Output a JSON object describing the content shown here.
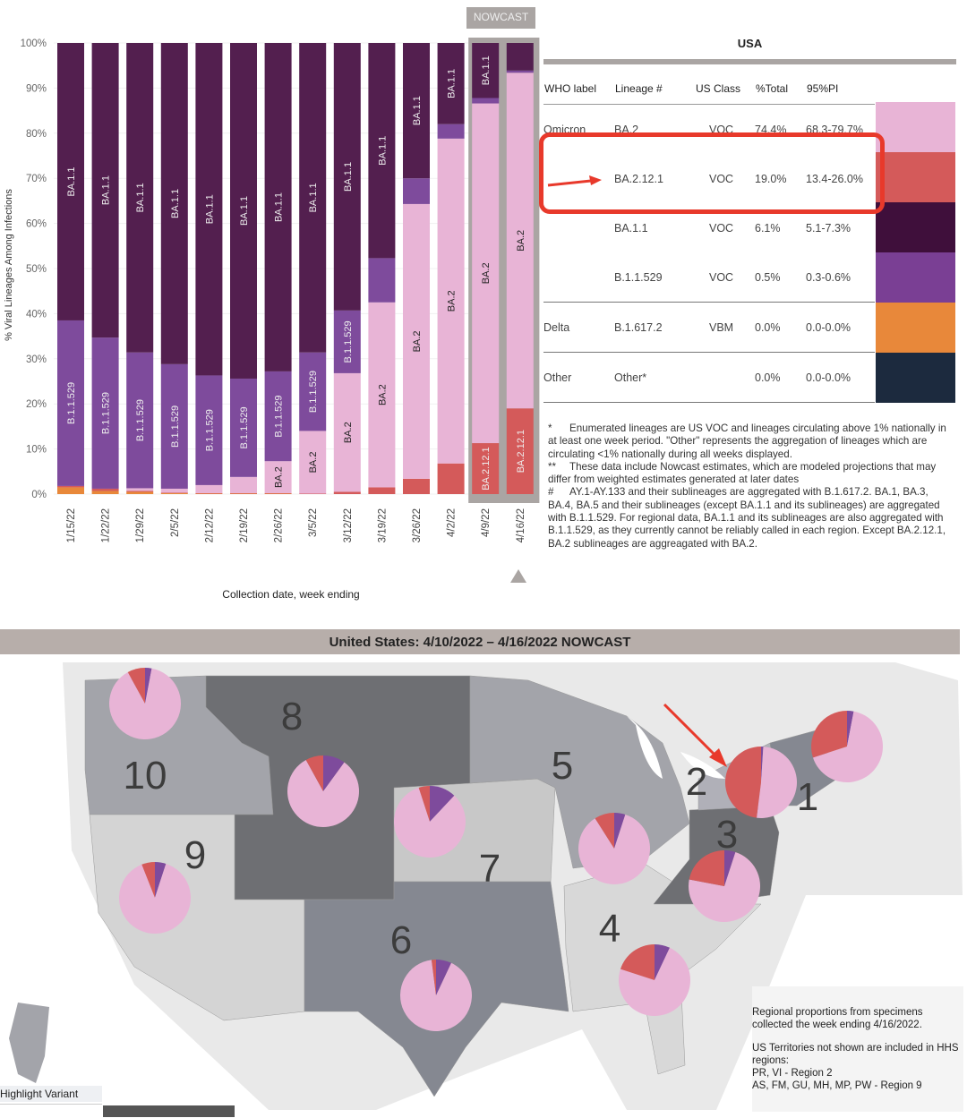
{
  "chart_data": {
    "type": "bar",
    "stacked": true,
    "title": "",
    "xlabel": "Collection date, week ending",
    "ylabel": "% Viral Lineages Among Infections",
    "ylim": [
      0,
      100
    ],
    "yticks": [
      "0%",
      "10%",
      "20%",
      "30%",
      "40%",
      "50%",
      "60%",
      "70%",
      "80%",
      "90%",
      "100%"
    ],
    "nowcast_label": "NOWCAST",
    "categories": [
      "1/15/22",
      "1/22/22",
      "1/29/22",
      "2/5/22",
      "2/12/22",
      "2/19/22",
      "2/26/22",
      "3/5/22",
      "3/12/22",
      "3/19/22",
      "3/26/22",
      "4/2/22",
      "4/9/22",
      "4/16/22"
    ],
    "series_order": [
      "B.1.617.2",
      "BA.2.12.1",
      "BA.2",
      "B.1.1.529",
      "BA.1.1"
    ],
    "series": [
      {
        "name": "B.1.617.2",
        "color": "#e8883a",
        "values": [
          1.5,
          0.7,
          0.5,
          0.2,
          0.1,
          0.1,
          0.1,
          0,
          0,
          0,
          0,
          0,
          0,
          0
        ]
      },
      {
        "name": "BA.2.12.1",
        "color": "#d45a5a",
        "values": [
          0.3,
          0.5,
          0.2,
          0.1,
          0.1,
          0.1,
          0.1,
          0.1,
          0.5,
          1.5,
          3.4,
          6.8,
          11.3,
          19.0
        ]
      },
      {
        "name": "BA.2",
        "color": "#e8b4d6",
        "values": [
          0,
          0,
          0.6,
          0.9,
          1.8,
          3.6,
          7.1,
          13.9,
          26.3,
          41.0,
          60.9,
          72.0,
          75.3,
          74.4
        ]
      },
      {
        "name": "B.1.1.529",
        "color": "#7e4b9c",
        "values": [
          36.7,
          33.5,
          30.1,
          27.6,
          24.3,
          21.8,
          19.9,
          17.4,
          13.9,
          9.8,
          5.7,
          3.2,
          1.2,
          0.5
        ]
      },
      {
        "name": "BA.1.1",
        "color": "#531f4f",
        "values": [
          61.5,
          65.3,
          68.6,
          71.2,
          73.7,
          74.4,
          72.8,
          68.6,
          59.3,
          47.7,
          30.0,
          18.0,
          12.2,
          6.1
        ]
      }
    ],
    "segment_labels": [
      [
        "BA.1.1",
        "B.1.1.529"
      ],
      [
        "BA.1.1",
        "B.1.1.529"
      ],
      [
        "BA.1.1",
        "B.1.1.529"
      ],
      [
        "BA.1.1",
        "B.1.1.529"
      ],
      [
        "BA.1.1",
        "B.1.1.529"
      ],
      [
        "BA.1.1",
        "B.1.1.529"
      ],
      [
        "BA.1.1",
        "B.1.1.529",
        "BA.2"
      ],
      [
        "BA.1.1",
        "B.1.1.529",
        "BA.2"
      ],
      [
        "BA.1.1",
        "B.1.1.529",
        "BA.2"
      ],
      [
        "BA.1.1",
        "BA.2"
      ],
      [
        "BA.1.1",
        "BA.2"
      ],
      [
        "BA.1.1",
        "BA.2"
      ],
      [
        "BA.1.1",
        "BA.2",
        "BA.2.12.1"
      ],
      [
        "BA.2",
        "BA.2.12.1"
      ]
    ],
    "nowcast_weeks": [
      "4/9/22",
      "4/16/22"
    ]
  },
  "table": {
    "title": "USA",
    "headers": [
      "WHO label",
      "Lineage #",
      "US Class",
      "%Total",
      "95%PI"
    ],
    "rows": [
      {
        "who": "Omicron",
        "lineage": "BA.2",
        "class": "VOC",
        "total": "74.4%",
        "pi": "68.3-79.7%",
        "color": "#e8b4d6"
      },
      {
        "who": "",
        "lineage": "BA.2.12.1",
        "class": "VOC",
        "total": "19.0%",
        "pi": "13.4-26.0%",
        "color": "#d45a5a"
      },
      {
        "who": "",
        "lineage": "BA.1.1",
        "class": "VOC",
        "total": "6.1%",
        "pi": "5.1-7.3%",
        "color": "#3f0f3b"
      },
      {
        "who": "",
        "lineage": "B.1.1.529",
        "class": "VOC",
        "total": "0.5%",
        "pi": "0.3-0.6%",
        "color": "#7a3f94"
      },
      {
        "who": "Delta",
        "lineage": "B.1.617.2",
        "class": "VBM",
        "total": "0.0%",
        "pi": "0.0-0.0%",
        "color": "#e8883a"
      },
      {
        "who": "Other",
        "lineage": "Other*",
        "class": "",
        "total": "0.0%",
        "pi": "0.0-0.0%",
        "color": "#1c2a3e"
      }
    ],
    "highlight_color": "#e8392b"
  },
  "notes": [
    {
      "mark": "*",
      "text": "Enumerated lineages are US VOC and lineages circulating above 1% nationally in at least one week period. \"Other\" represents the aggregation of lineages which are circulating <1% nationally during all weeks displayed."
    },
    {
      "mark": "**",
      "text": "These data include Nowcast estimates, which are modeled projections that may differ from weighted estimates generated at later dates"
    },
    {
      "mark": "#",
      "text": "AY.1-AY.133 and their sublineages are aggregated with B.1.617.2. BA.1, BA.3, BA.4, BA.5 and their sublineages (except BA.1.1 and its sublineages) are aggregated with B.1.1.529. For regional data, BA.1.1 and its sublineages are also aggregated with B.1.1.529, as they currently cannot be reliably called in each region. Except BA.2.12.1, BA.2 sublineages are aggreagated with BA.2."
    }
  ],
  "map": {
    "title": "United States: 4/10/2022 – 4/16/2022 NOWCAST",
    "pie_series": [
      "B.1.1.529",
      "BA.2",
      "BA.2.12.1"
    ],
    "pie_colors": [
      "#7e4b9c",
      "#e8b4d6",
      "#d45a5a"
    ],
    "regions": [
      {
        "id": "1",
        "shares": [
          3,
          67,
          30
        ]
      },
      {
        "id": "2",
        "shares": [
          1,
          51,
          48
        ]
      },
      {
        "id": "3",
        "shares": [
          5,
          73,
          22
        ]
      },
      {
        "id": "4",
        "shares": [
          7,
          73,
          20
        ]
      },
      {
        "id": "5",
        "shares": [
          5,
          86,
          9
        ]
      },
      {
        "id": "6",
        "shares": [
          7,
          91,
          2
        ]
      },
      {
        "id": "7",
        "shares": [
          12,
          83,
          5
        ]
      },
      {
        "id": "8",
        "shares": [
          10,
          82,
          8
        ]
      },
      {
        "id": "9",
        "shares": [
          5,
          89,
          6
        ]
      },
      {
        "id": "10",
        "shares": [
          3,
          89,
          8
        ]
      }
    ],
    "legend_note": "Regional proportions from specimens collected the week ending 4/16/2022.",
    "territories_note": "US Territories not shown are included in HHS regions:",
    "territories": [
      "PR, VI - Region 2",
      "AS, FM, GU, MH, MP, PW - Region 9"
    ],
    "highlight_label": "Highlight Variant"
  }
}
